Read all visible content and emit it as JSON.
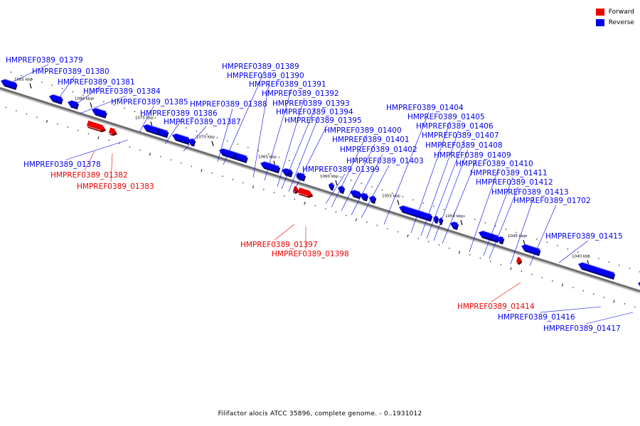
{
  "legend": {
    "forward": {
      "label": "Forward",
      "color": "#ee0000"
    },
    "reverse": {
      "label": "Reverse",
      "color": "#0000ee"
    }
  },
  "caption": "Filifactor alocis ATCC 35896, complete genome. - 0..1931012",
  "colors": {
    "forward": "#ee0000",
    "reverse": "#0000ee",
    "backbone": "#777777"
  },
  "scale_ticks": [
    "1085 kbp",
    "1080 kbp",
    "1075 kbp",
    "1070 kbp",
    "1065 kbp",
    "1060 kbp",
    "1055 kbp",
    "1050 kbp",
    "1045 kbp",
    "1040 kbp"
  ],
  "genes": [
    {
      "id": "HMPREF0389_01378",
      "strand": "reverse"
    },
    {
      "id": "HMPREF0389_01379",
      "strand": "reverse"
    },
    {
      "id": "HMPREF0389_01380",
      "strand": "reverse"
    },
    {
      "id": "HMPREF0389_01381",
      "strand": "reverse"
    },
    {
      "id": "HMPREF0389_01382",
      "strand": "forward"
    },
    {
      "id": "HMPREF0389_01383",
      "strand": "forward"
    },
    {
      "id": "HMPREF0389_01384",
      "strand": "reverse"
    },
    {
      "id": "HMPREF0389_01385",
      "strand": "reverse"
    },
    {
      "id": "HMPREF0389_01386",
      "strand": "reverse"
    },
    {
      "id": "HMPREF0389_01387",
      "strand": "reverse"
    },
    {
      "id": "HMPREF0389_01388",
      "strand": "reverse"
    },
    {
      "id": "HMPREF0389_01389",
      "strand": "reverse"
    },
    {
      "id": "HMPREF0389_01390",
      "strand": "reverse"
    },
    {
      "id": "HMPREF0389_01391",
      "strand": "reverse"
    },
    {
      "id": "HMPREF0389_01392",
      "strand": "reverse"
    },
    {
      "id": "HMPREF0389_01393",
      "strand": "reverse"
    },
    {
      "id": "HMPREF0389_01394",
      "strand": "reverse"
    },
    {
      "id": "HMPREF0389_01395",
      "strand": "reverse"
    },
    {
      "id": "HMPREF0389_01397",
      "strand": "forward"
    },
    {
      "id": "HMPREF0389_01398",
      "strand": "forward"
    },
    {
      "id": "HMPREF0389_01399",
      "strand": "reverse"
    },
    {
      "id": "HMPREF0389_01400",
      "strand": "reverse"
    },
    {
      "id": "HMPREF0389_01401",
      "strand": "reverse"
    },
    {
      "id": "HMPREF0389_01402",
      "strand": "reverse"
    },
    {
      "id": "HMPREF0389_01403",
      "strand": "reverse"
    },
    {
      "id": "HMPREF0389_01404",
      "strand": "reverse"
    },
    {
      "id": "HMPREF0389_01405",
      "strand": "reverse"
    },
    {
      "id": "HMPREF0389_01406",
      "strand": "reverse"
    },
    {
      "id": "HMPREF0389_01407",
      "strand": "reverse"
    },
    {
      "id": "HMPREF0389_01408",
      "strand": "reverse"
    },
    {
      "id": "HMPREF0389_01409",
      "strand": "reverse"
    },
    {
      "id": "HMPREF0389_01410",
      "strand": "reverse"
    },
    {
      "id": "HMPREF0389_01411",
      "strand": "reverse"
    },
    {
      "id": "HMPREF0389_01412",
      "strand": "reverse"
    },
    {
      "id": "HMPREF0389_01413",
      "strand": "reverse"
    },
    {
      "id": "HMPREF0389_01702",
      "strand": "reverse"
    },
    {
      "id": "HMPREF0389_01414",
      "strand": "forward"
    },
    {
      "id": "HMPREF0389_01415",
      "strand": "reverse"
    },
    {
      "id": "HMPREF0389_01416",
      "strand": "reverse"
    },
    {
      "id": "HMPREF0389_01417",
      "strand": "reverse"
    }
  ]
}
